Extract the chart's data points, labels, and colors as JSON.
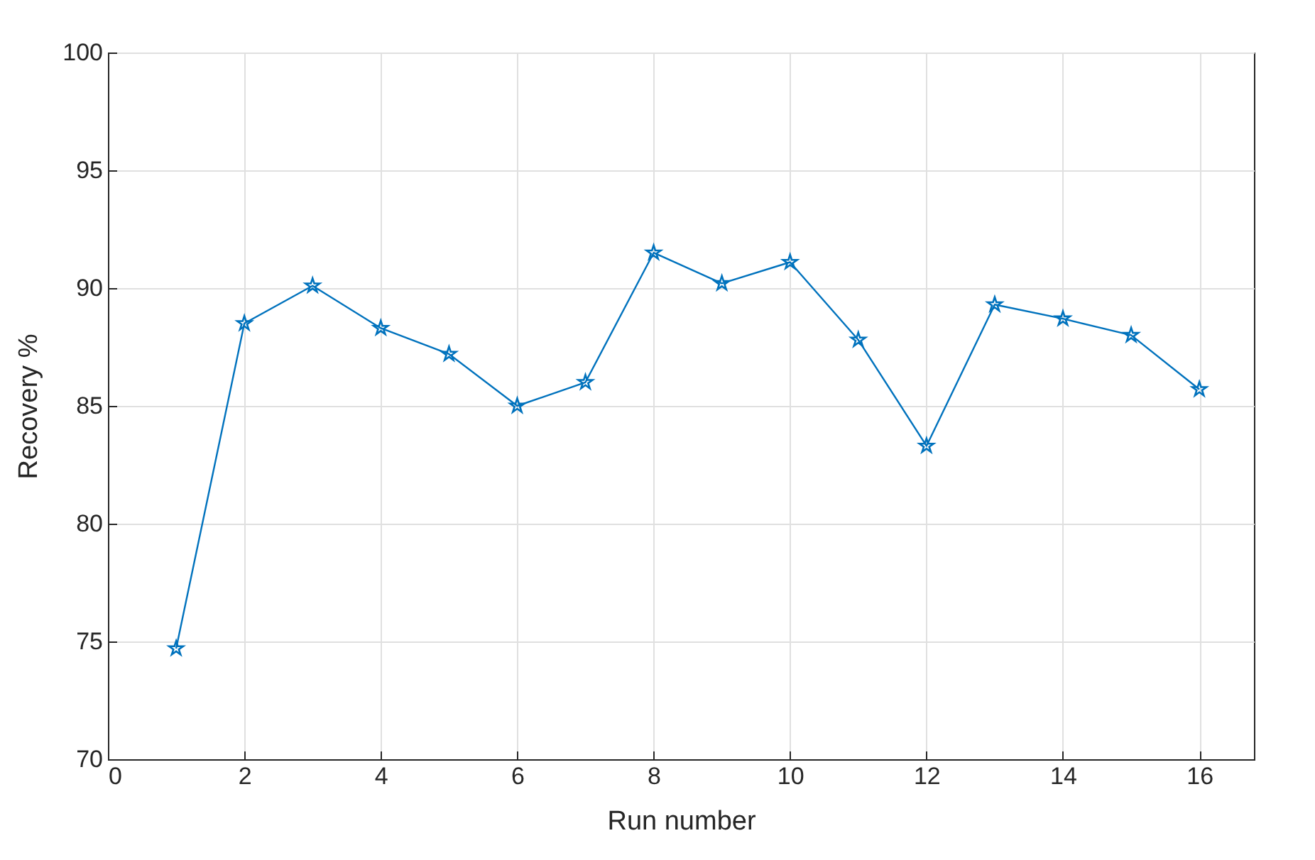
{
  "chart_data": {
    "type": "line",
    "xlabel": "Run number",
    "ylabel": "Recovery %",
    "x": [
      1,
      2,
      3,
      4,
      5,
      6,
      7,
      8,
      9,
      10,
      11,
      12,
      13,
      14,
      15,
      16
    ],
    "series": [
      {
        "color": "#0072bd",
        "values": [
          74.7,
          88.5,
          90.1,
          88.3,
          87.2,
          85.0,
          86.0,
          91.5,
          90.2,
          91.1,
          87.8,
          83.3,
          89.3,
          88.7,
          88.0,
          85.7
        ]
      }
    ],
    "xlim": [
      0,
      16.8
    ],
    "xticks": [
      0,
      2,
      4,
      6,
      8,
      10,
      12,
      14,
      16
    ],
    "ylim": [
      70,
      100
    ],
    "yticks": [
      70,
      75,
      80,
      85,
      90,
      95,
      100
    ],
    "grid": true,
    "marker": "star",
    "line_style": "solid"
  }
}
